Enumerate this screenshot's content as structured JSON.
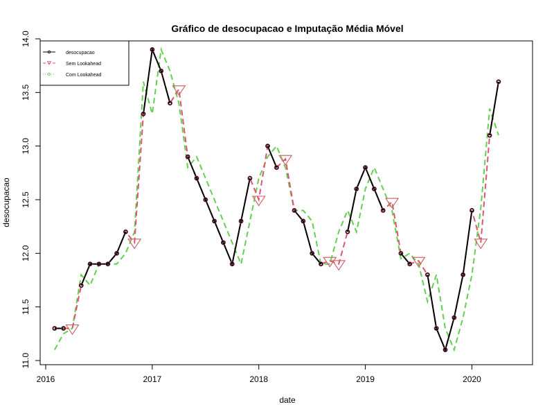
{
  "chart_data": {
    "type": "line",
    "title": "Gráfico de desocupacao e Imputação Média Móvel",
    "xlabel": "date",
    "ylabel": "desocupacao",
    "xlim": [
      2016.0,
      2020.4
    ],
    "ylim": [
      11.0,
      14.0
    ],
    "x_ticks": [
      2016,
      2017,
      2018,
      2019,
      2020
    ],
    "x_tick_labels": [
      "2016",
      "2017",
      "2018",
      "2019",
      "2020"
    ],
    "y_ticks": [
      11.0,
      11.5,
      12.0,
      12.5,
      13.0,
      13.5,
      14.0
    ],
    "y_tick_labels": [
      "11.0",
      "11.5",
      "12.0",
      "12.5",
      "13.0",
      "13.5",
      "14.0"
    ],
    "legend": {
      "placement": "top-left",
      "entries": [
        "desocupacao",
        "Sem Lookahead",
        "Com Lookahead"
      ]
    },
    "colors": {
      "desocupacao": "#000000",
      "sem_lookahead": "#DF536B",
      "com_lookahead": "#61D04F"
    },
    "dates": [
      "2016-02",
      "2016-03",
      "2016-04",
      "2016-05",
      "2016-06",
      "2016-07",
      "2016-08",
      "2016-09",
      "2016-10",
      "2016-11",
      "2016-12",
      "2017-01",
      "2017-02",
      "2017-03",
      "2017-04",
      "2017-05",
      "2017-06",
      "2017-07",
      "2017-08",
      "2017-09",
      "2017-10",
      "2017-11",
      "2017-12",
      "2018-01",
      "2018-02",
      "2018-03",
      "2018-04",
      "2018-05",
      "2018-06",
      "2018-07",
      "2018-08",
      "2018-09",
      "2018-10",
      "2018-11",
      "2018-12",
      "2019-01",
      "2019-02",
      "2019-03",
      "2019-04",
      "2019-05",
      "2019-06",
      "2019-07",
      "2019-08",
      "2019-09",
      "2019-10",
      "2019-11",
      "2019-12",
      "2020-01",
      "2020-02",
      "2020-03",
      "2020-04"
    ],
    "series": [
      {
        "name": "desocupacao",
        "values": [
          11.3,
          11.3,
          11.4,
          11.7,
          11.9,
          11.9,
          11.9,
          12.0,
          12.2,
          12.7,
          13.3,
          13.9,
          13.7,
          13.4,
          13.1,
          12.9,
          12.7,
          12.5,
          12.3,
          12.1,
          11.9,
          12.3,
          12.7,
          13.2,
          13.0,
          12.8,
          12.6,
          12.4,
          12.3,
          12.0,
          11.9,
          11.7,
          11.7,
          12.2,
          12.6,
          12.8,
          12.6,
          12.4,
          12.1,
          12.0,
          11.9,
          11.9,
          11.8,
          11.3,
          11.1,
          11.4,
          11.8,
          12.4,
          12.7,
          13.1,
          13.6
        ]
      },
      {
        "name": "Sem Lookahead",
        "values": [
          11.3,
          11.3,
          11.3,
          11.7,
          11.9,
          11.9,
          11.9,
          12.0,
          12.2,
          12.1,
          13.3,
          13.9,
          13.7,
          13.4,
          13.53,
          12.9,
          12.7,
          12.5,
          12.3,
          12.1,
          11.9,
          12.3,
          12.7,
          12.5,
          13.0,
          12.8,
          12.88,
          12.4,
          12.3,
          12.0,
          11.9,
          11.93,
          11.9,
          12.2,
          12.6,
          12.8,
          12.6,
          12.4,
          12.48,
          12.0,
          11.9,
          11.93,
          11.8,
          11.3,
          11.1,
          11.4,
          11.8,
          12.4,
          12.1,
          13.1,
          13.6
        ]
      },
      {
        "name": "Com Lookahead",
        "values": [
          11.1,
          11.25,
          11.3,
          11.8,
          11.7,
          11.9,
          11.9,
          11.9,
          12.0,
          12.2,
          13.6,
          13.3,
          13.9,
          13.7,
          13.4,
          12.8,
          12.9,
          12.7,
          12.5,
          12.3,
          12.1,
          11.9,
          12.3,
          12.7,
          12.9,
          13.0,
          12.8,
          12.4,
          12.4,
          12.3,
          11.9,
          11.9,
          12.2,
          12.4,
          12.2,
          12.6,
          12.8,
          12.6,
          12.4,
          11.95,
          12.0,
          11.9,
          11.55,
          11.8,
          11.3,
          11.1,
          11.4,
          11.8,
          12.42,
          13.35,
          13.1
        ]
      }
    ],
    "imputed_markers": {
      "Sem Lookahead": [
        "2016-04",
        "2016-11",
        "2017-04",
        "2018-01",
        "2018-04",
        "2018-09",
        "2018-10",
        "2019-04",
        "2019-07",
        "2020-02"
      ],
      "Com Lookahead": [
        "2016-04",
        "2016-11",
        "2017-04",
        "2018-01",
        "2018-04",
        "2018-09",
        "2018-10",
        "2019-04",
        "2019-07",
        "2020-02"
      ]
    },
    "observed_markers": [
      "2016-02",
      "2016-03",
      "2016-05",
      "2016-06",
      "2016-07",
      "2016-08",
      "2016-09",
      "2016-10",
      "2016-12",
      "2017-01",
      "2017-02",
      "2017-03",
      "2017-05",
      "2017-06",
      "2017-07",
      "2017-08",
      "2017-09",
      "2017-10",
      "2017-11",
      "2017-12",
      "2018-02",
      "2018-03",
      "2018-05",
      "2018-06",
      "2018-07",
      "2018-08",
      "2018-11",
      "2018-12",
      "2019-01",
      "2019-02",
      "2019-03",
      "2019-05",
      "2019-06",
      "2019-08",
      "2019-09",
      "2019-10",
      "2019-11",
      "2019-12",
      "2020-01",
      "2020-03",
      "2020-04"
    ]
  }
}
